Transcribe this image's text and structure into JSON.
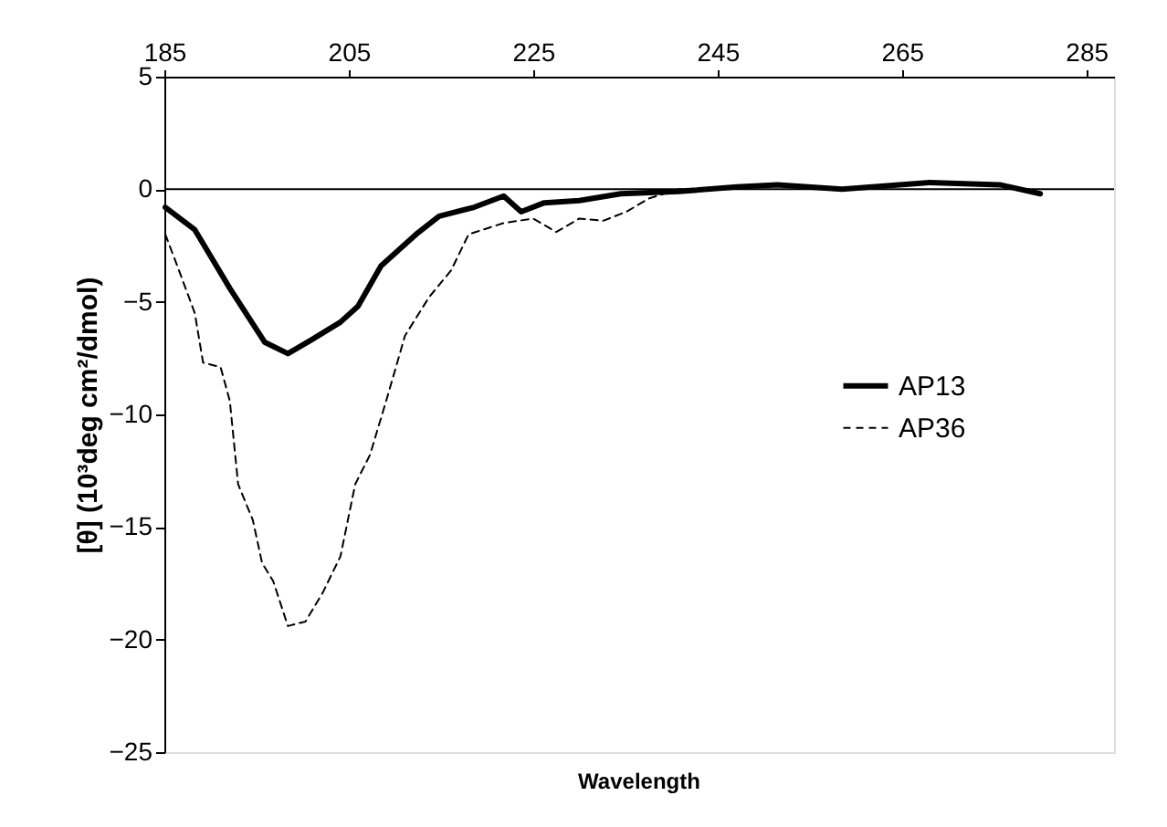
{
  "chart_data": {
    "type": "line",
    "xlabel": "Wavelength",
    "ylabel": "[θ] (10³deg cm²/dmol)",
    "xlim": [
      185,
      288
    ],
    "xticks": [
      185,
      205,
      225,
      245,
      265,
      285
    ],
    "ylim": [
      -25,
      5
    ],
    "yticks": [
      -25,
      -20,
      -15,
      -10,
      -5,
      0,
      5
    ],
    "grid": false,
    "legend": "right",
    "ref_lines": [
      {
        "axis": "y",
        "value": 0,
        "label": null
      }
    ],
    "series": [
      {
        "name": "AP13",
        "color": "#000000",
        "line_style": "solid",
        "x": [
          185.1,
          188.3,
          190.2,
          192.1,
          195.9,
          198.4,
          200.9,
          204.1,
          206.0,
          208.5,
          212.3,
          214.8,
          218.6,
          221.8,
          223.7,
          226.2,
          230.0,
          234.5,
          240.8,
          247.1,
          251.5,
          258.5,
          268.0,
          275.6,
          280.0
        ],
        "values": [
          -0.8,
          -1.8,
          -3.1,
          -4.4,
          -6.8,
          -7.3,
          -6.7,
          -5.9,
          -5.2,
          -3.4,
          -2.0,
          -1.2,
          -0.8,
          -0.3,
          -1.0,
          -0.6,
          -0.5,
          -0.2,
          -0.1,
          0.1,
          0.2,
          0.0,
          0.3,
          0.2,
          -0.2
        ]
      },
      {
        "name": "AP36",
        "color": "#000000",
        "line_style": "dashed",
        "x": [
          185.1,
          186.4,
          188.3,
          189.2,
          191.1,
          192.1,
          193.0,
          194.6,
          195.6,
          196.8,
          198.4,
          200.3,
          202.2,
          204.1,
          205.7,
          207.3,
          209.2,
          211.1,
          213.7,
          216.1,
          218.0,
          221.8,
          225.0,
          227.5,
          230.0,
          232.6,
          235.1,
          237.6,
          240.8,
          247.1,
          251.5,
          258.5,
          268.0,
          275.6,
          280.0
        ],
        "values": [
          -2.0,
          -3.4,
          -5.5,
          -7.7,
          -7.9,
          -9.4,
          -13.1,
          -14.7,
          -16.6,
          -17.4,
          -19.4,
          -19.2,
          -17.9,
          -16.3,
          -13.1,
          -11.8,
          -9.2,
          -6.5,
          -4.8,
          -3.6,
          -2.0,
          -1.5,
          -1.3,
          -1.9,
          -1.3,
          -1.4,
          -1.0,
          -0.4,
          0.0,
          0.1,
          0.2,
          0.0,
          0.3,
          0.2,
          -0.2
        ]
      }
    ]
  }
}
